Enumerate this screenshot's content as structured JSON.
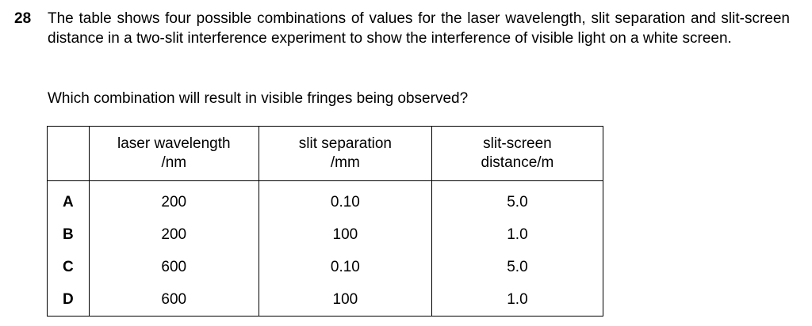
{
  "question": {
    "number": "28",
    "text": "The table shows four possible combinations of values for the laser wavelength, slit separation and slit-screen distance in a two-slit interference experiment to show the interference of visible light on a white screen.",
    "prompt": "Which combination will result in visible fringes being observed?"
  },
  "table": {
    "headers": [
      {
        "line1": "laser wavelength",
        "line2": "/nm"
      },
      {
        "line1": "slit separation",
        "line2": "/mm"
      },
      {
        "line1": "slit-screen",
        "line2": "distance/m"
      }
    ],
    "rows": [
      {
        "option": "A",
        "wavelength": "200",
        "separation": "0.10",
        "distance": "5.0"
      },
      {
        "option": "B",
        "wavelength": "200",
        "separation": "100",
        "distance": "1.0"
      },
      {
        "option": "C",
        "wavelength": "600",
        "separation": "0.10",
        "distance": "5.0"
      },
      {
        "option": "D",
        "wavelength": "600",
        "separation": "100",
        "distance": "1.0"
      }
    ]
  }
}
